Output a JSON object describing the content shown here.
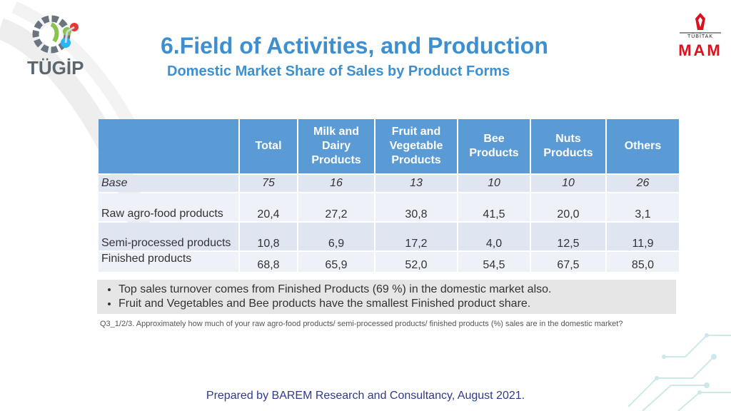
{
  "logo_left": {
    "text": "TÜGİP"
  },
  "logo_right": {
    "org": "TÜBİTAK",
    "unit": "MAM"
  },
  "title": "6.Field of Activities, and Production",
  "subtitle": "Domestic Market Share of Sales by Product Forms",
  "table": {
    "headers": [
      "",
      "Total",
      "Milk and Dairy Products",
      "Fruit and Vegetable Products",
      "Bee Products",
      "Nuts Products",
      "Others"
    ],
    "rows": [
      {
        "label": "Base",
        "values": [
          "75",
          "16",
          "13",
          "10",
          "10",
          "26"
        ]
      },
      {
        "label": "Raw agro-food products",
        "values": [
          "20,4",
          "27,2",
          "30,8",
          "41,5",
          "20,0",
          "3,1"
        ]
      },
      {
        "label": "Semi-processed products",
        "values": [
          "10,8",
          "6,9",
          "17,2",
          "4,0",
          "12,5",
          "11,9"
        ]
      },
      {
        "label": "Finished products",
        "values": [
          "68,8",
          "65,9",
          "52,0",
          "54,5",
          "67,5",
          "85,0"
        ]
      }
    ]
  },
  "notes": [
    "Top sales turnover comes from Finished Products (69 %) in the domestic market also.",
    "Fruit and Vegetables and Bee products have the smallest Finished product share."
  ],
  "footnote": "Q3_1/2/3. Approximately how much of your raw agro-food products/ semi-processed products/ finished products (%) sales are in the domestic market?",
  "footer": "Prepared by BAREM Research and Consultancy, August 2021.",
  "colors": {
    "title": "#3d8fd0",
    "header_bg": "#5b9bd5",
    "row_dark": "#dfe6f2",
    "row_light": "#eef1f8",
    "footer": "#2f3a8c",
    "brand_red": "#d9121f"
  }
}
